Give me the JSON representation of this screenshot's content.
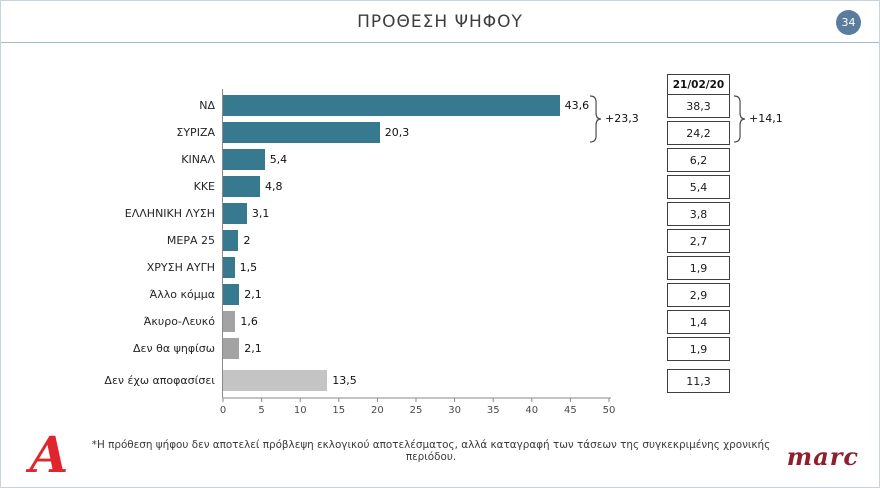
{
  "header": {
    "title": "ΠΡΟΘΕΣΗ ΨΗΦΟΥ",
    "page_number": "34"
  },
  "chart_data": {
    "type": "bar",
    "orientation": "horizontal",
    "title": "ΠΡΟΘΕΣΗ ΨΗΦΟΥ",
    "categories": [
      "ΝΔ",
      "ΣΥΡΙΖΑ",
      "ΚΙΝΑΛ",
      "ΚΚΕ",
      "ΕΛΛΗΝΙΚΗ ΛΥΣΗ",
      "ΜΕΡΑ 25",
      "ΧΡΥΣΗ ΑΥΓΗ",
      "Άλλο κόμμα",
      "Άκυρο-Λευκό",
      "Δεν θα ψηφίσω",
      "Δεν έχω αποφασίσει"
    ],
    "values": [
      43.6,
      20.3,
      5.4,
      4.8,
      3.1,
      2,
      1.5,
      2.1,
      1.6,
      2.1,
      13.5
    ],
    "value_labels": [
      "43,6",
      "20,3",
      "5,4",
      "4,8",
      "3,1",
      "2",
      "1,5",
      "2,1",
      "1,6",
      "2,1",
      "13,5"
    ],
    "bar_colors": [
      "#37798e",
      "#37798e",
      "#37798e",
      "#37798e",
      "#37798e",
      "#37798e",
      "#37798e",
      "#37798e",
      "#a3a3a3",
      "#a3a3a3",
      "#c4c4c4"
    ],
    "x_ticks": [
      0,
      5,
      10,
      15,
      20,
      25,
      30,
      35,
      40,
      45,
      50
    ],
    "xlim": [
      0,
      50
    ],
    "grid": false,
    "previous_column": {
      "header": "21/02/20",
      "values": [
        "38,3",
        "24,2",
        "6,2",
        "5,4",
        "3,8",
        "2,7",
        "1,9",
        "2,9",
        "1,4",
        "1,9",
        "11,3"
      ]
    },
    "annotations": [
      {
        "label": "+23,3",
        "applies_to": "difference of top two parties, current wave"
      },
      {
        "label": "+14,1",
        "applies_to": "difference of top two parties, previous wave 21/02/20"
      }
    ],
    "colors": {
      "party_bar": "#37798e",
      "invalid_blank_bar": "#a3a3a3",
      "undecided_bar": "#c4c4c4",
      "page_badge": "#5b7d9d",
      "alpha_red": "#e0262c",
      "marc_maroon": "#8e1f2d"
    }
  },
  "footer": {
    "footnote": "*Η πρόθεση ψήφου δεν αποτελεί πρόβλεψη εκλογικού αποτελέσματος, αλλά καταγραφή των τάσεων της συγκεκριμένης χρονικής περιόδου.",
    "alpha_logo_text": "A",
    "marc_logo_text": "marc"
  }
}
